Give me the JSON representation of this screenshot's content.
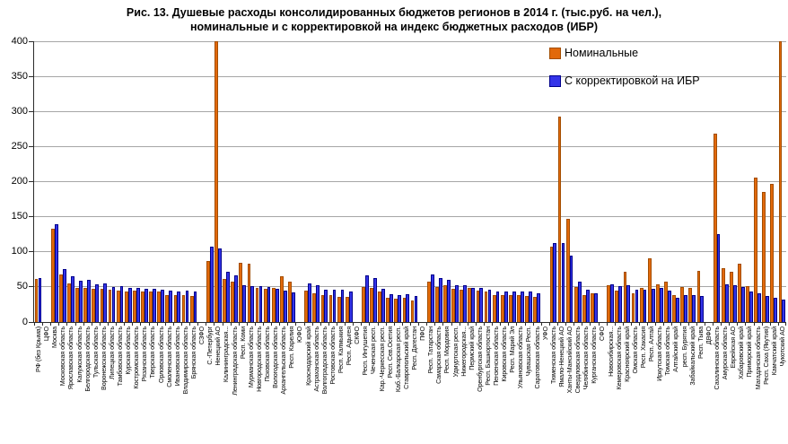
{
  "title_line1": "Рис. 13. Душевые расходы консолидированных бюджетов регионов в 2014 г. (тыс.руб. на чел.),",
  "title_line2": "номинальные и с корректировкой на индекс бюджетных расходов (ИБР)",
  "colors": {
    "nominal_fill": "#e2690a",
    "nominal_border": "#a34d00",
    "adjusted_fill": "#3434e8",
    "adjusted_border": "#00008b",
    "gridline": "#a6a6a6",
    "axis": "#2b2b2b"
  },
  "chart_data": {
    "type": "bar",
    "title": "Рис. 13. Душевые расходы консолидированных бюджетов регионов в 2014 г. (тыс.руб. на чел.), номинальные и с корректировкой на индекс бюджетных расходов (ИБР)",
    "ylim": [
      0,
      400
    ],
    "yticks": [
      0,
      50,
      100,
      150,
      200,
      250,
      300,
      350,
      400
    ],
    "grid": true,
    "legend_position": "top-right-inside",
    "units": "тыс.руб. на чел.",
    "series": [
      {
        "name": "Номинальные",
        "color": "#e2690a"
      },
      {
        "name": "С корректировкой на ИБР",
        "color": "#3434e8"
      }
    ],
    "note": "Bars for Ненецкий АО and Чукотский АО are clipped at the axis maximum of 400. Federal district labels (ЦФО, СЗФО, ЮФО, СКФО, ПФО, УФО, СФО, ДВФО) are separator categories without bars.",
    "categories": [
      {
        "label": "РФ (без Крыма)",
        "nominal": 61,
        "adjusted": 63
      },
      {
        "label": "ЦФО",
        "nominal": null,
        "adjusted": null
      },
      {
        "label": "Москва",
        "nominal": 133,
        "adjusted": 139
      },
      {
        "label": "Московская область",
        "nominal": 68,
        "adjusted": 76
      },
      {
        "label": "Ярославская область",
        "nominal": 55,
        "adjusted": 65
      },
      {
        "label": "Калужская область",
        "nominal": 48,
        "adjusted": 59
      },
      {
        "label": "Белгородская область",
        "nominal": 48,
        "adjusted": 60
      },
      {
        "label": "Тульская область",
        "nominal": 47,
        "adjusted": 54
      },
      {
        "label": "Воронежская область",
        "nominal": 47,
        "adjusted": 55
      },
      {
        "label": "Липецкая область",
        "nominal": 46,
        "adjusted": 50
      },
      {
        "label": "Тамбовская область",
        "nominal": 45,
        "adjusted": 51
      },
      {
        "label": "Курская область",
        "nominal": 44,
        "adjusted": 48
      },
      {
        "label": "Костромская область",
        "nominal": 45,
        "adjusted": 48
      },
      {
        "label": "Рязанская область",
        "nominal": 44,
        "adjusted": 47
      },
      {
        "label": "Тверская область",
        "nominal": 43,
        "adjusted": 47
      },
      {
        "label": "Орловская область",
        "nominal": 43,
        "adjusted": 46
      },
      {
        "label": "Смоленская область",
        "nominal": 39,
        "adjusted": 45
      },
      {
        "label": "Ивановская область",
        "nominal": 38,
        "adjusted": 44
      },
      {
        "label": "Владимирская область",
        "nominal": 38,
        "adjusted": 45
      },
      {
        "label": "Брянская область",
        "nominal": 37,
        "adjusted": 43
      },
      {
        "label": "СЗФО",
        "nominal": null,
        "adjusted": null
      },
      {
        "label": "С.-Петербург",
        "nominal": 87,
        "adjusted": 108
      },
      {
        "label": "Ненецкий АО",
        "nominal": 400,
        "adjusted": 105,
        "clipped": true
      },
      {
        "label": "Калининградская...",
        "nominal": 61,
        "adjusted": 71
      },
      {
        "label": "Ленинградская область",
        "nominal": 57,
        "adjusted": 66
      },
      {
        "label": "Респ. Коми",
        "nominal": 85,
        "adjusted": 53
      },
      {
        "label": "Мурманская область",
        "nominal": 83,
        "adjusted": 51
      },
      {
        "label": "Новгородская область",
        "nominal": 48,
        "adjusted": 51
      },
      {
        "label": "Псковская область",
        "nominal": 47,
        "adjusted": 50
      },
      {
        "label": "Вологодская область",
        "nominal": 48,
        "adjusted": 47
      },
      {
        "label": "Архангельская область",
        "nominal": 65,
        "adjusted": 45
      },
      {
        "label": "Респ. Карелия",
        "nominal": 57,
        "adjusted": 42
      },
      {
        "label": "ЮФО",
        "nominal": null,
        "adjusted": null
      },
      {
        "label": "Краснодарский край",
        "nominal": 45,
        "adjusted": 55
      },
      {
        "label": "Астраханская область",
        "nominal": 41,
        "adjusted": 53
      },
      {
        "label": "Волгоградская область",
        "nominal": 38,
        "adjusted": 46
      },
      {
        "label": "Ростовская область",
        "nominal": 39,
        "adjusted": 46
      },
      {
        "label": "Респ. Калмыкия",
        "nominal": 36,
        "adjusted": 46
      },
      {
        "label": "Респ. Адыгея",
        "nominal": 36,
        "adjusted": 43
      },
      {
        "label": "СКФО",
        "nominal": null,
        "adjusted": null
      },
      {
        "label": "Респ. Ингушетия",
        "nominal": 50,
        "adjusted": 67
      },
      {
        "label": "Чеченская респ.",
        "nominal": 49,
        "adjusted": 63
      },
      {
        "label": "Кар.-Черкесская респ.",
        "nominal": 43,
        "adjusted": 47
      },
      {
        "label": "Респ. Сев.Осетия",
        "nominal": 34,
        "adjusted": 40
      },
      {
        "label": "Каб.-Балкарская респ.",
        "nominal": 33,
        "adjusted": 39
      },
      {
        "label": "Ставропольский край",
        "nominal": 35,
        "adjusted": 40
      },
      {
        "label": "Респ. Дагестан",
        "nominal": 31,
        "adjusted": 37
      },
      {
        "label": "ПФО",
        "nominal": null,
        "adjusted": null
      },
      {
        "label": "Респ. Татарстан",
        "nominal": 57,
        "adjusted": 68
      },
      {
        "label": "Самарская область",
        "nominal": 50,
        "adjusted": 63
      },
      {
        "label": "Респ. Мордовия",
        "nominal": 53,
        "adjusted": 60
      },
      {
        "label": "Удмуртская респ.",
        "nominal": 47,
        "adjusted": 52
      },
      {
        "label": "Нижегородская...",
        "nominal": 46,
        "adjusted": 53
      },
      {
        "label": "Пермский край",
        "nominal": 48,
        "adjusted": 49
      },
      {
        "label": "Оренбургская область",
        "nominal": 45,
        "adjusted": 48
      },
      {
        "label": "Респ. Башкортостан",
        "nominal": 44,
        "adjusted": 46
      },
      {
        "label": "Пензенская область",
        "nominal": 38,
        "adjusted": 44
      },
      {
        "label": "Кировская область",
        "nominal": 39,
        "adjusted": 43
      },
      {
        "label": "Респ. Марий Эл",
        "nominal": 38,
        "adjusted": 44
      },
      {
        "label": "Ульяновская область",
        "nominal": 38,
        "adjusted": 43
      },
      {
        "label": "Чувашская Респ.",
        "nominal": 37,
        "adjusted": 44
      },
      {
        "label": "Саратовская область",
        "nominal": 36,
        "adjusted": 41
      },
      {
        "label": "УФО",
        "nominal": null,
        "adjusted": null
      },
      {
        "label": "Тюменская область",
        "nominal": 107,
        "adjusted": 113
      },
      {
        "label": "Ямало-Ненецкий АО",
        "nominal": 293,
        "adjusted": 112
      },
      {
        "label": "Ханты-Мансийский АО",
        "nominal": 147,
        "adjusted": 94
      },
      {
        "label": "Свердловская область",
        "nominal": 50,
        "adjusted": 58
      },
      {
        "label": "Челябинская область",
        "nominal": 39,
        "adjusted": 46
      },
      {
        "label": "Курганская область",
        "nominal": 41,
        "adjusted": 41
      },
      {
        "label": "СФО",
        "nominal": null,
        "adjusted": null
      },
      {
        "label": "Новосибирская...",
        "nominal": 52,
        "adjusted": 54
      },
      {
        "label": "Кемеровская область",
        "nominal": 45,
        "adjusted": 51
      },
      {
        "label": "Красноярский край",
        "nominal": 71,
        "adjusted": 53
      },
      {
        "label": "Омская область",
        "nominal": 41,
        "adjusted": 46
      },
      {
        "label": "Респ. Хакасия",
        "nominal": 49,
        "adjusted": 46
      },
      {
        "label": "Респ. Алтай",
        "nominal": 91,
        "adjusted": 47
      },
      {
        "label": "Иркутская область",
        "nominal": 54,
        "adjusted": 48
      },
      {
        "label": "Томская область",
        "nominal": 58,
        "adjusted": 45
      },
      {
        "label": "Алтайский край",
        "nominal": 39,
        "adjusted": 34
      },
      {
        "label": "респ. Бурятия",
        "nominal": 50,
        "adjusted": 39
      },
      {
        "label": "Забайкальский край",
        "nominal": 48,
        "adjusted": 38
      },
      {
        "label": "Респ. Тыва",
        "nominal": 73,
        "adjusted": 37
      },
      {
        "label": "ДВФО",
        "nominal": null,
        "adjusted": null
      },
      {
        "label": "Сахалинская область",
        "nominal": 268,
        "adjusted": 125
      },
      {
        "label": "Амурская область",
        "nominal": 77,
        "adjusted": 54
      },
      {
        "label": "Еврейская АО",
        "nominal": 72,
        "adjusted": 53
      },
      {
        "label": "Хабаровский край",
        "nominal": 83,
        "adjusted": 50
      },
      {
        "label": "Приморский край",
        "nominal": 51,
        "adjusted": 43
      },
      {
        "label": "Магаданская область",
        "nominal": 206,
        "adjusted": 41
      },
      {
        "label": "Респ. Саха (Якутия)",
        "nominal": 185,
        "adjusted": 37
      },
      {
        "label": "Камчатский край",
        "nominal": 197,
        "adjusted": 34
      },
      {
        "label": "Чукотский АО",
        "nominal": 400,
        "adjusted": 32,
        "clipped": true
      }
    ]
  }
}
